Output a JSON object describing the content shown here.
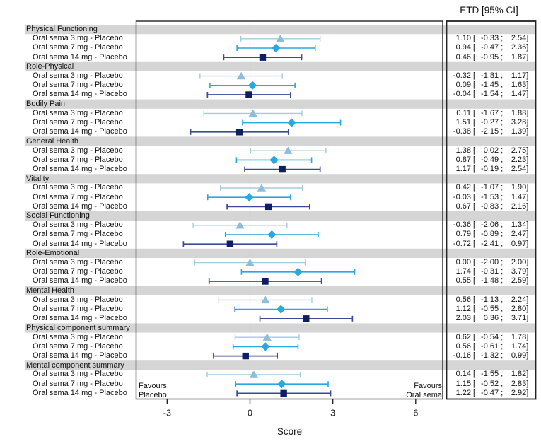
{
  "chart_data": {
    "type": "forest",
    "col_header": "ETD [95% CI]",
    "xlabel": "Score",
    "x_ticks": [
      "-3",
      "0",
      "3",
      "6"
    ],
    "xlim": [
      -4.1,
      7.0
    ],
    "reference_line": 0,
    "legend_position": "none",
    "grid": false,
    "annotations": {
      "favours_left_line1": "Favours",
      "favours_left_line2": "Placebo",
      "favours_right_line1": "Favours",
      "favours_right_line2": "Oral sema"
    },
    "colors": {
      "band_gray": "#d5d5d5",
      "frame": "#222222",
      "reference_dotted": "#9a9a9a",
      "sema3_line": "#a3cbe0",
      "sema3_marker": "#8cbedb",
      "sema7_line": "#29a7e0",
      "sema7_marker": "#29a7e0",
      "sema14_line": "#3a4a99",
      "sema14_marker": "#0d1e63"
    },
    "series_styles": [
      {
        "name": "Oral sema 3 mg - Placebo",
        "marker": "triangle",
        "line": "#a3cbe0",
        "fill": "#8cbedb"
      },
      {
        "name": "Oral sema 7 mg - Placebo",
        "marker": "diamond",
        "line": "#29a7e0",
        "fill": "#29a7e0"
      },
      {
        "name": "Oral sema 14 mg - Placebo",
        "marker": "square",
        "line": "#3a4a99",
        "fill": "#0d1e63"
      }
    ],
    "groups": [
      {
        "name": "Physical Functioning",
        "rows": [
          {
            "label": "Oral sema 3 mg - Placebo",
            "est": "1.10",
            "lo": "-0.33",
            "hi": "2.54"
          },
          {
            "label": "Oral sema 7 mg - Placebo",
            "est": "0.94",
            "lo": "-0.47",
            "hi": "2.36"
          },
          {
            "label": "Oral sema 14 mg - Placebo",
            "est": "0.46",
            "lo": "-0.95",
            "hi": "1.87"
          }
        ]
      },
      {
        "name": "Role-Physical",
        "rows": [
          {
            "label": "Oral sema 3 mg - Placebo",
            "est": "-0.32",
            "lo": "-1.81",
            "hi": "1.17"
          },
          {
            "label": "Oral sema 7 mg - Placebo",
            "est": "0.09",
            "lo": "-1.45",
            "hi": "1.63"
          },
          {
            "label": "Oral sema 14 mg - Placebo",
            "est": "-0.04",
            "lo": "-1.54",
            "hi": "1.47"
          }
        ]
      },
      {
        "name": "Bodily Pain",
        "rows": [
          {
            "label": "Oral sema 3 mg - Placebo",
            "est": "0.11",
            "lo": "-1.67",
            "hi": "1.88"
          },
          {
            "label": "Oral sema 7 mg - Placebo",
            "est": "1.51",
            "lo": "-0.27",
            "hi": "3.28"
          },
          {
            "label": "Oral sema 14 mg - Placebo",
            "est": "-0.38",
            "lo": "-2.15",
            "hi": "1.39"
          }
        ]
      },
      {
        "name": "General Health",
        "rows": [
          {
            "label": "Oral sema 3 mg - Placebo",
            "est": "1.38",
            "lo": "0.02",
            "hi": "2.75"
          },
          {
            "label": "Oral sema 7 mg - Placebo",
            "est": "0.87",
            "lo": "-0.49",
            "hi": "2.23"
          },
          {
            "label": "Oral sema 14 mg - Placebo",
            "est": "1.17",
            "lo": "-0.19",
            "hi": "2.54"
          }
        ]
      },
      {
        "name": "Vitality",
        "rows": [
          {
            "label": "Oral sema 3 mg - Placebo",
            "est": "0.42",
            "lo": "-1.07",
            "hi": "1.90"
          },
          {
            "label": "Oral sema 7 mg - Placebo",
            "est": "-0.03",
            "lo": "-1.53",
            "hi": "1.47"
          },
          {
            "label": "Oral sema 14 mg - Placebo",
            "est": "0.67",
            "lo": "-0.83",
            "hi": "2.16"
          }
        ]
      },
      {
        "name": "Social Functioning",
        "rows": [
          {
            "label": "Oral sema 3 mg - Placebo",
            "est": "-0.36",
            "lo": "-2.06",
            "hi": "1.34"
          },
          {
            "label": "Oral sema 7 mg - Placebo",
            "est": "0.79",
            "lo": "-0.89",
            "hi": "2.47"
          },
          {
            "label": "Oral sema 14 mg - Placebo",
            "est": "-0.72",
            "lo": "-2.41",
            "hi": "0.97"
          }
        ]
      },
      {
        "name": "Role-Emotional",
        "rows": [
          {
            "label": "Oral sema 3 mg - Placebo",
            "est": "0.00",
            "lo": "-2.00",
            "hi": "2.00"
          },
          {
            "label": "Oral sema 7 mg - Placebo",
            "est": "1.74",
            "lo": "-0.31",
            "hi": "3.79"
          },
          {
            "label": "Oral sema 14 mg - Placebo",
            "est": "0.55",
            "lo": "-1.48",
            "hi": "2.59"
          }
        ]
      },
      {
        "name": "Mental Health",
        "rows": [
          {
            "label": "Oral sema 3 mg - Placebo",
            "est": "0.56",
            "lo": "-1.13",
            "hi": "2.24"
          },
          {
            "label": "Oral sema 7 mg - Placebo",
            "est": "1.12",
            "lo": "-0.55",
            "hi": "2.80"
          },
          {
            "label": "Oral sema 14 mg - Placebo",
            "est": "2.03",
            "lo": "0.36",
            "hi": "3.71"
          }
        ]
      },
      {
        "name": "Physical component summary",
        "rows": [
          {
            "label": "Oral sema 3 mg - Placebo",
            "est": "0.62",
            "lo": "-0.54",
            "hi": "1.78"
          },
          {
            "label": "Oral sema 7 mg - Placebo",
            "est": "0.56",
            "lo": "-0.61",
            "hi": "1.74"
          },
          {
            "label": "Oral sema 14 mg - Placebo",
            "est": "-0.16",
            "lo": "-1.32",
            "hi": "0.99"
          }
        ]
      },
      {
        "name": "Mental component summary",
        "rows": [
          {
            "label": "Oral sema 3 mg - Placebo",
            "est": "0.14",
            "lo": "-1.55",
            "hi": "1.82"
          },
          {
            "label": "Oral sema 7 mg - Placebo",
            "est": "1.15",
            "lo": "-0.52",
            "hi": "2.83"
          },
          {
            "label": "Oral sema 14 mg - Placebo",
            "est": "1.22",
            "lo": "-0.47",
            "hi": "2.92"
          }
        ]
      }
    ]
  }
}
